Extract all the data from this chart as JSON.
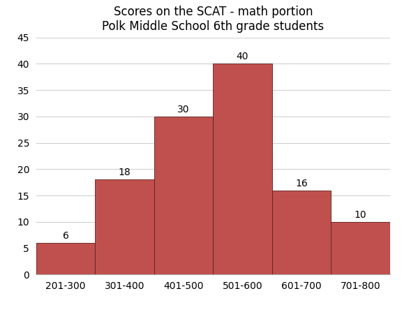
{
  "title_line1": "Scores on the SCAT - math portion",
  "title_line2": "Polk Middle School 6th grade students",
  "categories": [
    "201-300",
    "301-400",
    "401-500",
    "501-600",
    "601-700",
    "701-800"
  ],
  "values": [
    6,
    18,
    30,
    40,
    16,
    10
  ],
  "bar_color": "#c0504d",
  "bar_edgecolor": "#5a1f1f",
  "ylim": [
    0,
    45
  ],
  "yticks": [
    0,
    5,
    10,
    15,
    20,
    25,
    30,
    35,
    40,
    45
  ],
  "title_fontsize": 12,
  "tick_fontsize": 10,
  "label_fontsize": 10,
  "background_color": "#ffffff",
  "grid_color": "#d0d0d0"
}
